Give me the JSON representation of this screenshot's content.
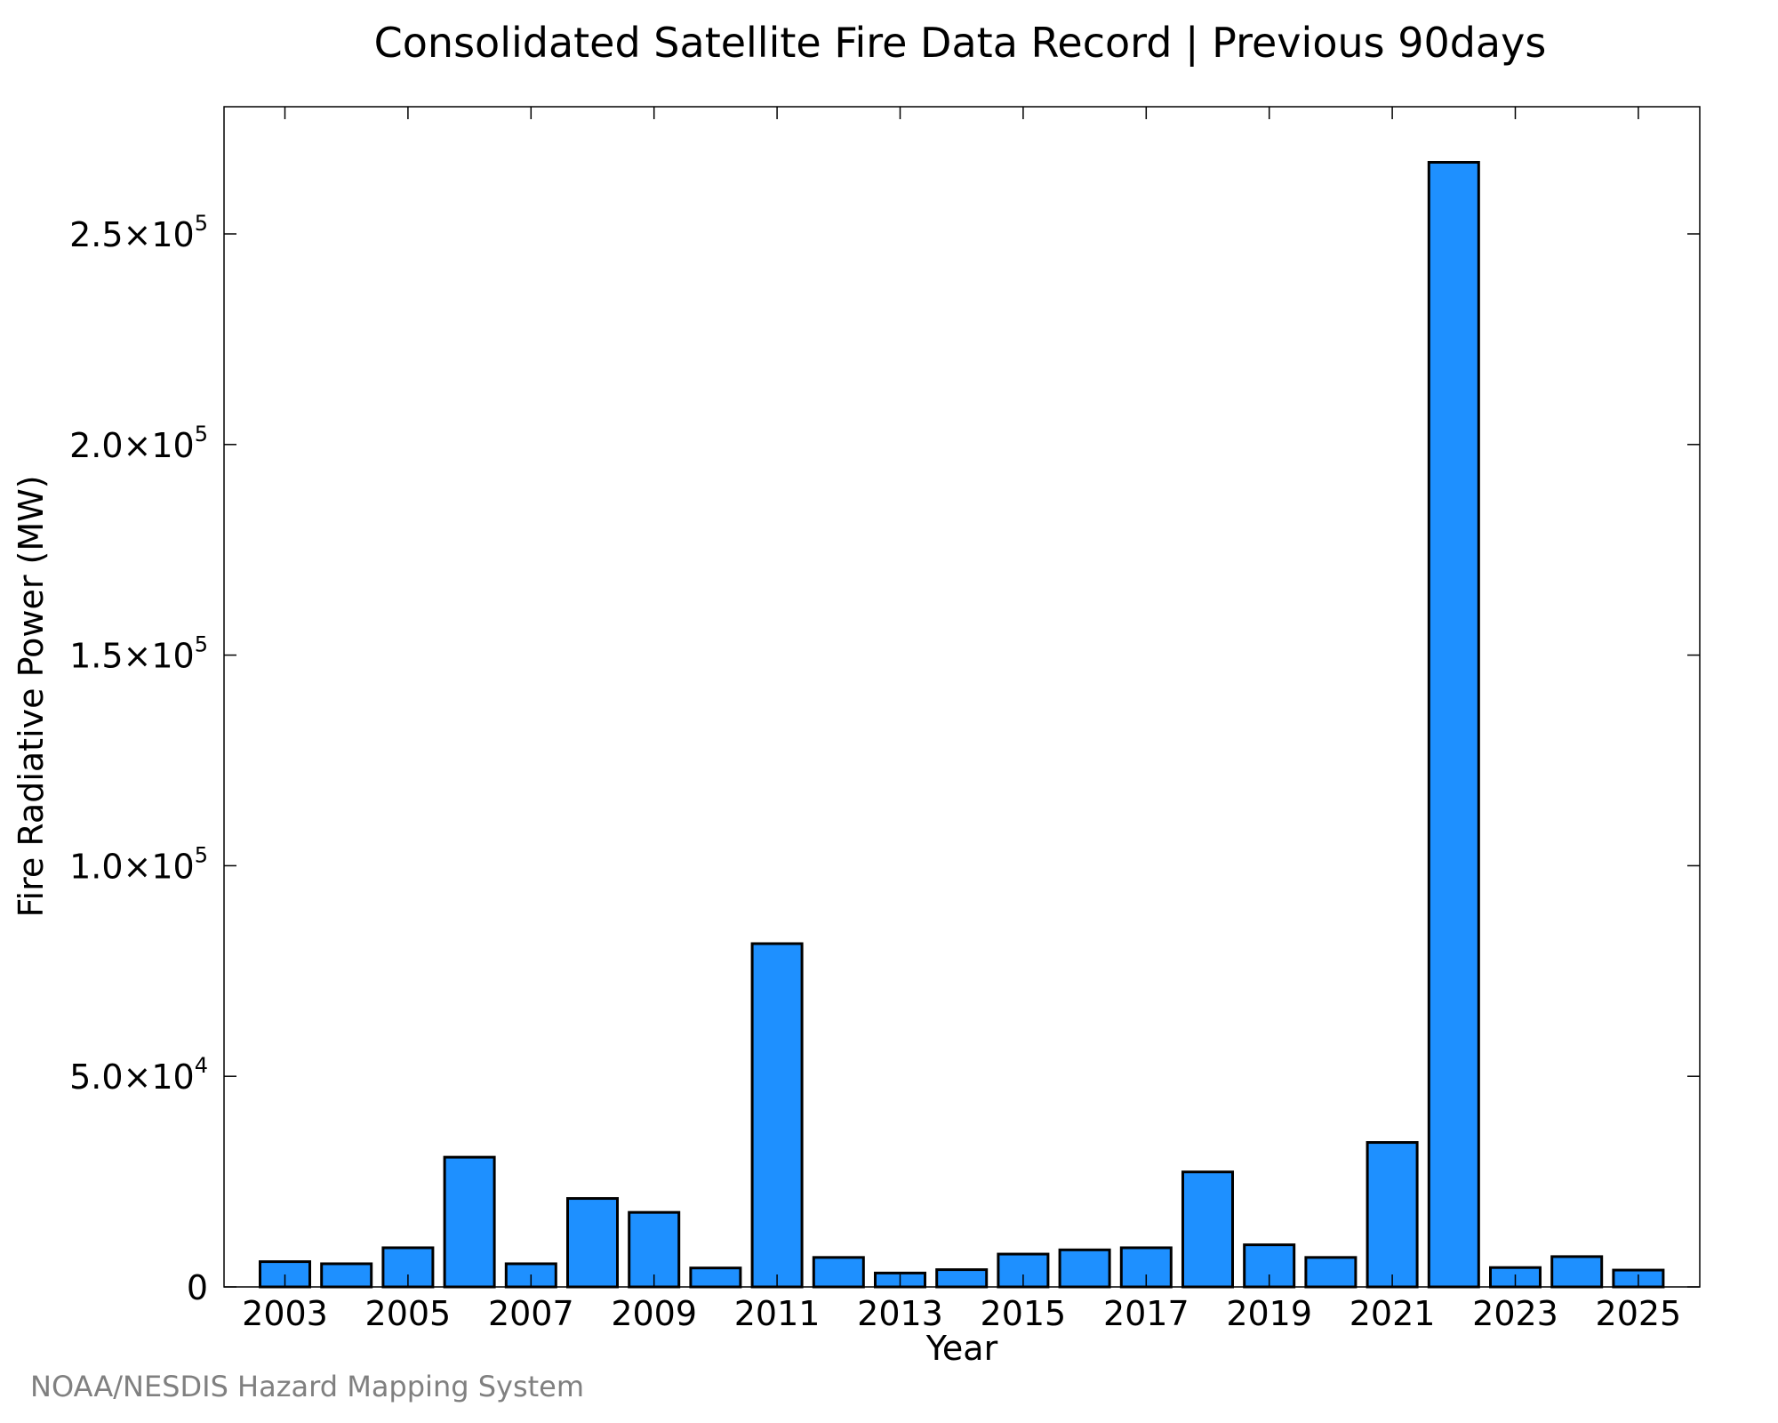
{
  "chart_data": {
    "type": "bar",
    "title": "Consolidated Satellite Fire Data Record | Previous 90days",
    "xlabel": "Year",
    "ylabel": "Fire Radiative Power (MW)",
    "ylim": [
      0,
      280000
    ],
    "categories": [
      "2003",
      "2004",
      "2005",
      "2006",
      "2007",
      "2008",
      "2009",
      "2010",
      "2011",
      "2012",
      "2013",
      "2014",
      "2015",
      "2016",
      "2017",
      "2018",
      "2019",
      "2020",
      "2021",
      "2022",
      "2023",
      "2024",
      "2025"
    ],
    "values": [
      6000,
      5500,
      9300,
      30800,
      5500,
      21000,
      17700,
      4500,
      81500,
      7000,
      3300,
      4100,
      7800,
      8800,
      9300,
      27300,
      10000,
      7000,
      34300,
      267000,
      4600,
      7200,
      4000
    ],
    "x_tick_labels": [
      "2003",
      "2005",
      "2007",
      "2009",
      "2011",
      "2013",
      "2015",
      "2017",
      "2019",
      "2021",
      "2023",
      "2025"
    ],
    "y_ticks": [
      {
        "value": 0,
        "mantissa": "0",
        "exp": ""
      },
      {
        "value": 50000,
        "mantissa": "5.0×10",
        "exp": "4"
      },
      {
        "value": 100000,
        "mantissa": "1.0×10",
        "exp": "5"
      },
      {
        "value": 150000,
        "mantissa": "1.5×10",
        "exp": "5"
      },
      {
        "value": 200000,
        "mantissa": "2.0×10",
        "exp": "5"
      },
      {
        "value": 250000,
        "mantissa": "2.5×10",
        "exp": "5"
      }
    ],
    "grid": false,
    "bar_color": "#1e90ff",
    "bar_edge_color": "#000000"
  },
  "credit": "NOAA/NESDIS Hazard Mapping System"
}
